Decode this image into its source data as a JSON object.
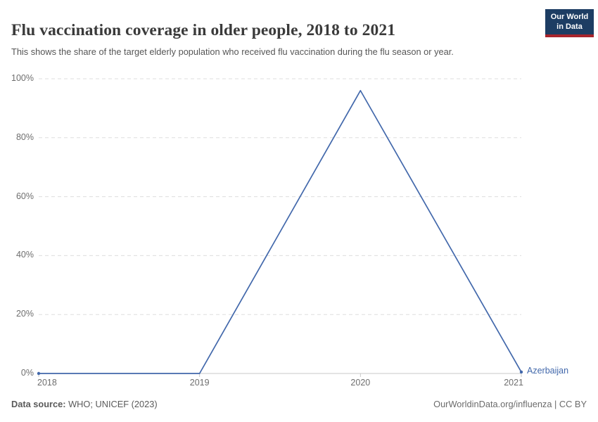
{
  "header": {
    "title": "Flu vaccination coverage in older people, 2018 to 2021",
    "subtitle": "This shows the share of the target elderly population who received flu vaccination during the flu season or year."
  },
  "logo": {
    "line1": "Our World",
    "line2": "in Data"
  },
  "chart_data": {
    "type": "line",
    "title": "Flu vaccination coverage in older people, 2018 to 2021",
    "categories": [
      "2018",
      "2019",
      "2020",
      "2021"
    ],
    "series": [
      {
        "name": "Azerbaijan",
        "values": [
          0,
          0,
          96,
          0.5
        ]
      }
    ],
    "xlabel": "",
    "ylabel": "",
    "ylim": [
      0,
      100
    ],
    "yticks": {
      "values": [
        0,
        20,
        40,
        60,
        80,
        100
      ],
      "labels": [
        "0%",
        "20%",
        "40%",
        "60%",
        "80%",
        "100%"
      ]
    },
    "grid": "horizontal-dashed",
    "legend_position": "line-end-label"
  },
  "footer": {
    "datasource_label": "Data source:",
    "datasource_value": " WHO; UNICEF (2023)",
    "attribution": "OurWorldinData.org/influenza | CC BY"
  },
  "colors": {
    "line": "#4268ab",
    "entity_label": "#4268ab",
    "logo_navy": "#1d3d63",
    "logo_red": "#a8242c",
    "title_text": "#3a3a3a",
    "body_text": "#565656",
    "tick_text": "#6e6e6e",
    "grid": "#dddddd",
    "axis": "#c8c8c8"
  }
}
